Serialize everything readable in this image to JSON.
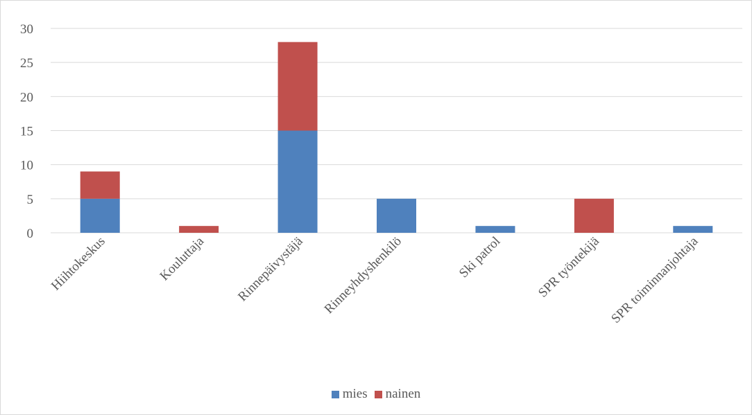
{
  "chart_data": {
    "type": "bar",
    "stacked": true,
    "categories": [
      "Hiihtokeskus",
      "Kouluttaja",
      "Rinnepäivystäjä",
      "Rinneyhdyshenkilö",
      "Ski patrol",
      "SPR työntekijä",
      "SPR toiminnanjohtaja"
    ],
    "series": [
      {
        "name": "mies",
        "color": "#4f81bd",
        "values": [
          5,
          0,
          15,
          5,
          1,
          0,
          1
        ]
      },
      {
        "name": "nainen",
        "color": "#c0504d",
        "values": [
          4,
          1,
          13,
          0,
          0,
          5,
          0
        ]
      }
    ],
    "ylim": [
      0,
      30
    ],
    "yticks": [
      0,
      5,
      10,
      15,
      20,
      25,
      30
    ],
    "grid": true,
    "legend_position": "bottom",
    "xlabel": "",
    "ylabel": "",
    "title": ""
  }
}
